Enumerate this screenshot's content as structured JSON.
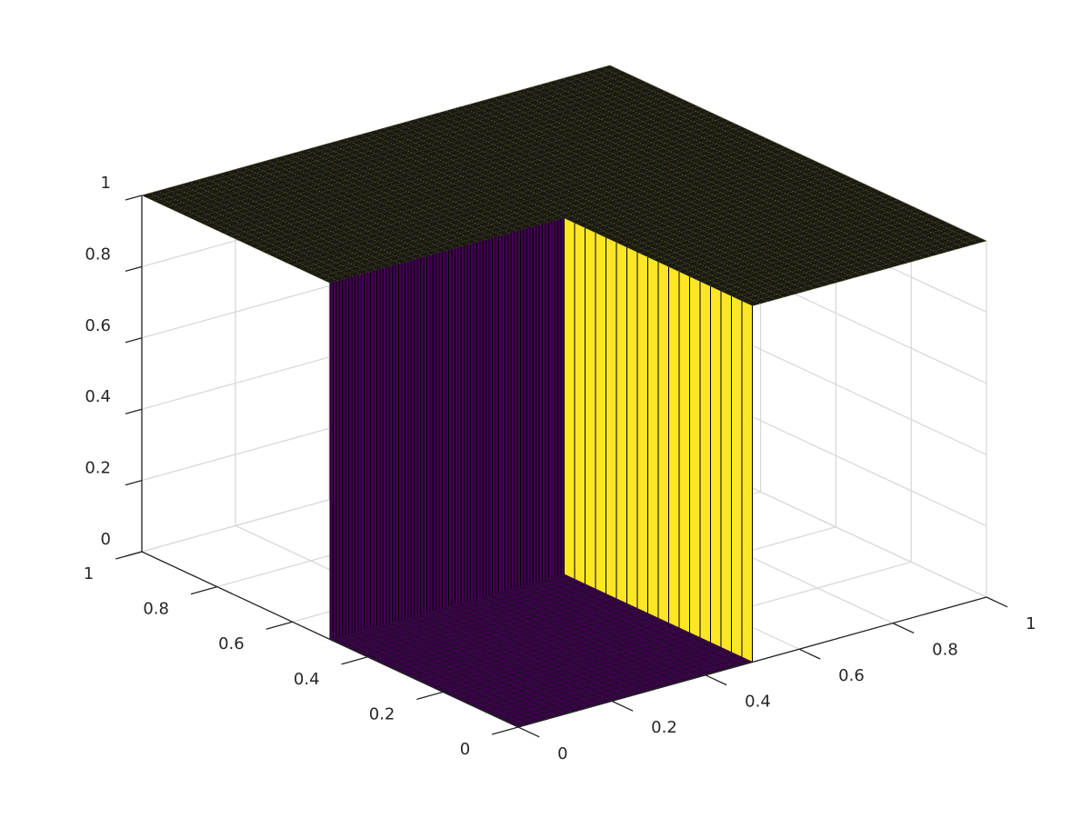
{
  "chart_data": {
    "type": "surface",
    "title": "",
    "xlabel": "",
    "ylabel": "",
    "zlabel": "",
    "xlim": [
      0,
      1
    ],
    "ylim": [
      0,
      1
    ],
    "zlim": [
      0,
      1
    ],
    "x_ticks": [
      0,
      0.2,
      0.4,
      0.6,
      0.8,
      1
    ],
    "y_ticks": [
      0,
      0.2,
      0.4,
      0.6,
      0.8,
      1
    ],
    "z_ticks": [
      0,
      0.2,
      0.4,
      0.6,
      0.8,
      1
    ],
    "x_tick_labels": [
      "0",
      "0.2",
      "0.4",
      "0.6",
      "0.8",
      "1"
    ],
    "y_tick_labels": [
      "0",
      "0.2",
      "0.4",
      "0.6",
      "0.8",
      "1"
    ],
    "z_tick_labels": [
      "0",
      "0.2",
      "0.4",
      "0.6",
      "0.8",
      "1"
    ],
    "grid": true,
    "box": false,
    "colormap": "parula",
    "colors": {
      "low": "#440154",
      "high": "#fde725",
      "mesh": "#000000",
      "grid": "#d9d9d9",
      "axis": "#262626"
    },
    "surface": {
      "description_of_values": "z = 1 on the region outside the inner rectangle; z = 0 inside",
      "region_low": {
        "x": [
          0,
          0.5
        ],
        "y": [
          0,
          0.5
        ],
        "z": 0
      },
      "region_high": {
        "z": 1
      }
    }
  }
}
